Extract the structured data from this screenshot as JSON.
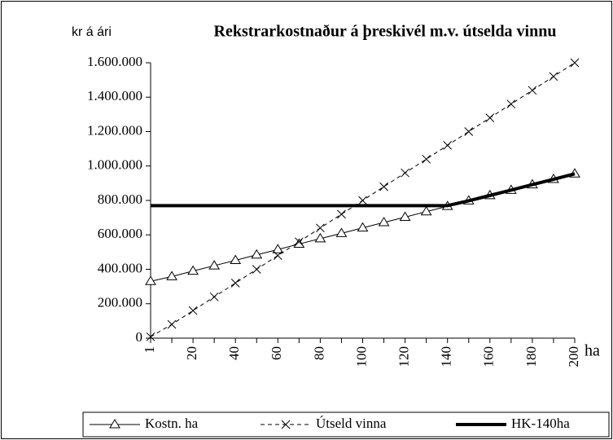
{
  "chart_data": {
    "type": "line",
    "title": "Rekstrarkostnaður á þreskivél m.v. útselda vinnu",
    "y_label": "kr á ári",
    "x_label": "ha",
    "categories": [
      "1",
      null,
      "20",
      null,
      "40",
      null,
      "60",
      null,
      "80",
      null,
      "100",
      null,
      "120",
      null,
      "140",
      null,
      "160",
      null,
      "180",
      null,
      "200"
    ],
    "series": [
      {
        "name": "Kostn. ha",
        "color": "#000000",
        "marker": "triangle",
        "dash": false,
        "width": 1,
        "values": [
          330000,
          358000,
          390000,
          421000,
          452000,
          484000,
          515000,
          547000,
          578000,
          609000,
          641000,
          672000,
          703000,
          735000,
          766000,
          798000,
          829000,
          860000,
          892000,
          923000,
          955000
        ]
      },
      {
        "name": "Útseld vinna",
        "color": "#000000",
        "marker": "x",
        "dash": true,
        "width": 1,
        "values": [
          8000,
          80000,
          160000,
          240000,
          320000,
          400000,
          480000,
          560000,
          640000,
          720000,
          800000,
          880000,
          960000,
          1040000,
          1120000,
          1200000,
          1280000,
          1360000,
          1440000,
          1520000,
          1600000
        ]
      },
      {
        "name": "HK-140ha",
        "color": "#000000",
        "marker": "none",
        "dash": false,
        "width": 4,
        "values": [
          770000,
          770000,
          770000,
          770000,
          770000,
          770000,
          770000,
          770000,
          770000,
          770000,
          770000,
          770000,
          770000,
          770000,
          770000,
          798000,
          829000,
          860000,
          892000,
          923000,
          955000
        ]
      }
    ],
    "ylim": [
      0,
      1600000
    ],
    "yticks": [
      0,
      {
        "value": 200000,
        "label": "200.000"
      },
      {
        "value": 400000,
        "label": "400.000"
      },
      {
        "value": 600000,
        "label": "600.000"
      },
      {
        "value": 800000,
        "label": "800.000"
      },
      {
        "value": 1000000,
        "label": "1.000.000"
      },
      {
        "value": 1200000,
        "label": "1.200.000"
      },
      {
        "value": 1400000,
        "label": "1.400.000"
      },
      {
        "value": 1600000,
        "label": "1.600.000"
      }
    ],
    "legend": "bottom"
  }
}
